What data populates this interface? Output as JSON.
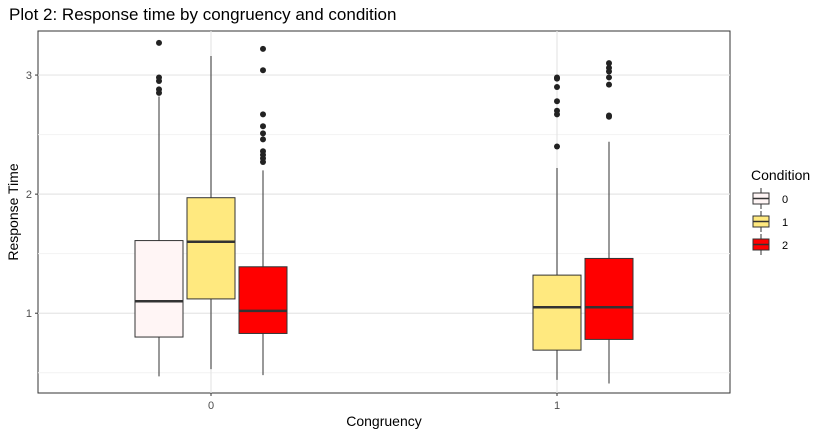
{
  "chart_data": {
    "type": "box",
    "title": "Plot 2: Response time by congruency and condition",
    "xlabel": "Congruency",
    "ylabel": "Response Time",
    "categories": [
      "0",
      "1"
    ],
    "y_ticks": [
      "1",
      "2",
      "3"
    ],
    "ylim": [
      0.33,
      3.37
    ],
    "grid": true,
    "legend": {
      "title": "Condition",
      "position": "right",
      "entries": [
        "0",
        "1",
        "2"
      ]
    },
    "series": [
      {
        "name": "0",
        "color": "#FFF5F5",
        "boxes": [
          {
            "category": "0",
            "min": 0.47,
            "q1": 0.8,
            "median": 1.1,
            "q3": 1.61,
            "max": 2.82,
            "outliers": [
              2.85,
              2.88,
              2.95,
              2.98,
              3.27
            ]
          }
        ]
      },
      {
        "name": "1",
        "color": "#FFE97F",
        "boxes": [
          {
            "category": "0",
            "min": 0.53,
            "q1": 1.12,
            "median": 1.6,
            "q3": 1.97,
            "max": 3.16,
            "outliers": []
          },
          {
            "category": "1",
            "min": 0.44,
            "q1": 0.69,
            "median": 1.05,
            "q3": 1.32,
            "max": 2.22,
            "outliers": [
              2.4,
              2.67,
              2.7,
              2.78,
              2.9,
              2.97,
              2.98
            ]
          }
        ]
      },
      {
        "name": "2",
        "color": "#FF0000",
        "boxes": [
          {
            "category": "0",
            "min": 0.48,
            "q1": 0.83,
            "median": 1.02,
            "q3": 1.39,
            "max": 2.2,
            "outliers": [
              2.27,
              2.3,
              2.33,
              2.36,
              2.46,
              2.51,
              2.57,
              2.67,
              3.04,
              3.22
            ]
          },
          {
            "category": "1",
            "min": 0.41,
            "q1": 0.78,
            "median": 1.05,
            "q3": 1.46,
            "max": 2.44,
            "outliers": [
              2.65,
              2.66,
              2.92,
              2.98,
              3.03,
              3.06,
              3.1
            ]
          }
        ]
      }
    ]
  }
}
